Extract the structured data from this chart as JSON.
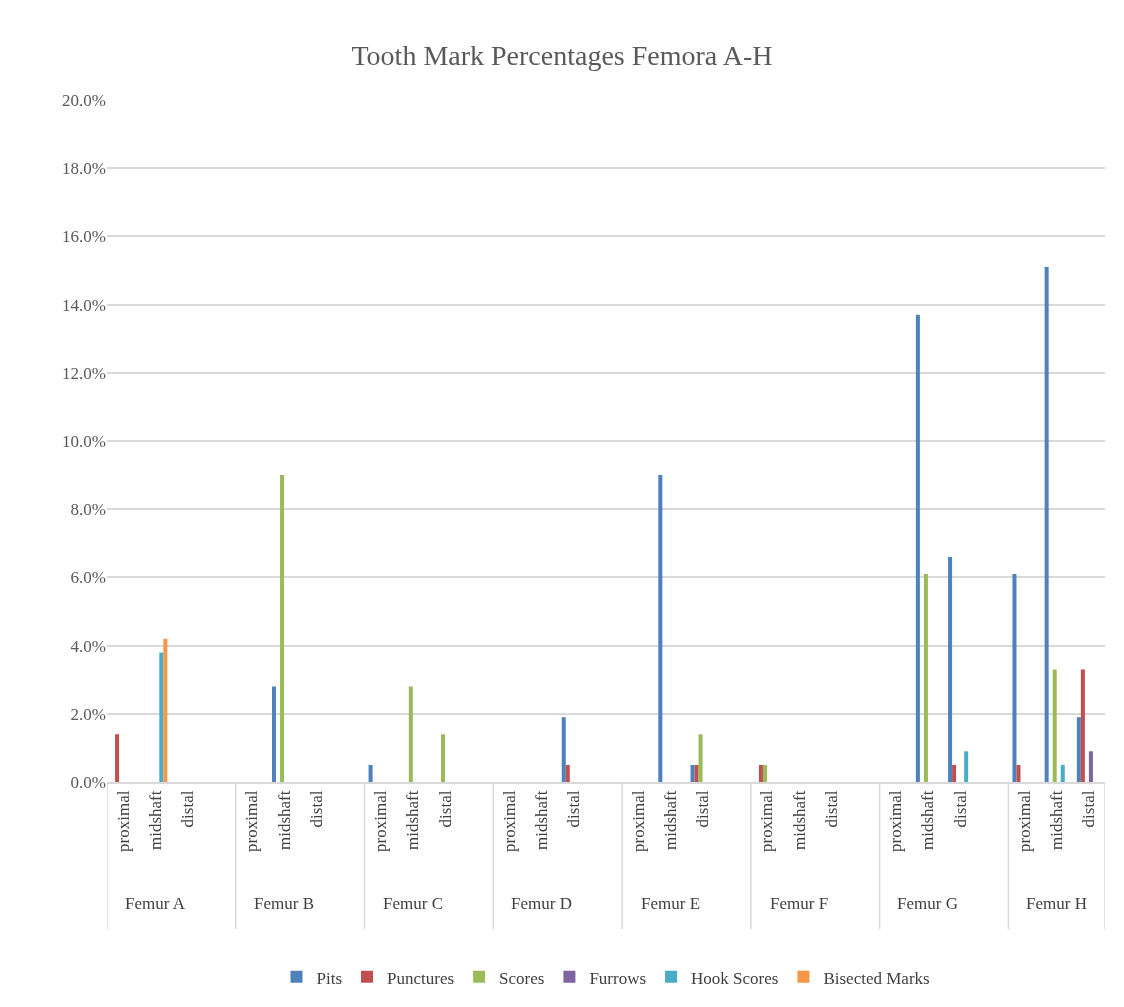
{
  "chart_data": {
    "type": "bar",
    "title": "Tooth Mark Percentages Femora A-H",
    "categories": [
      "proximal",
      "midshaft",
      "distal",
      null,
      "proximal",
      "midshaft",
      "distal",
      null,
      "proximal",
      "midshaft",
      "distal",
      null,
      "proximal",
      "midshaft",
      "distal",
      null,
      "proximal",
      "midshaft",
      "distal",
      null,
      "proximal",
      "midshaft",
      "distal",
      null,
      "proximal",
      "midshaft",
      "distal",
      null,
      "proximal",
      "midshaft",
      "distal"
    ],
    "annotations": [
      "Femur A",
      "Femur B",
      "Femur C",
      "Femur D",
      "Femur E",
      "Femur F",
      "Femur G",
      "Femur H"
    ],
    "series": [
      {
        "name": "Pits",
        "color": "#4f81bd",
        "values": [
          null,
          null,
          null,
          null,
          null,
          2.8,
          null,
          null,
          0.5,
          null,
          null,
          null,
          null,
          null,
          1.9,
          null,
          null,
          9.0,
          0.5,
          null,
          null,
          null,
          null,
          null,
          null,
          13.7,
          6.6,
          null,
          6.1,
          15.1,
          1.9
        ]
      },
      {
        "name": "Punctures",
        "color": "#c0504d",
        "values": [
          1.4,
          null,
          null,
          null,
          null,
          null,
          null,
          null,
          null,
          null,
          null,
          null,
          null,
          null,
          0.5,
          null,
          null,
          null,
          0.5,
          null,
          0.5,
          null,
          null,
          null,
          null,
          null,
          0.5,
          null,
          0.5,
          null,
          3.3
        ]
      },
      {
        "name": "Scores",
        "color": "#9bbb59",
        "values": [
          null,
          null,
          null,
          null,
          null,
          9.0,
          null,
          null,
          null,
          2.8,
          1.4,
          null,
          null,
          null,
          null,
          null,
          null,
          null,
          1.4,
          null,
          0.5,
          null,
          null,
          null,
          null,
          6.1,
          null,
          null,
          null,
          3.3,
          null
        ]
      },
      {
        "name": "Furrows",
        "color": "#8064a2",
        "values": [
          null,
          null,
          null,
          null,
          null,
          null,
          null,
          null,
          null,
          null,
          null,
          null,
          null,
          null,
          null,
          null,
          null,
          null,
          null,
          null,
          null,
          null,
          null,
          null,
          null,
          null,
          null,
          null,
          null,
          null,
          0.9
        ]
      },
      {
        "name": "Hook Scores",
        "color": "#4bacc6",
        "values": [
          null,
          3.8,
          null,
          null,
          null,
          null,
          null,
          null,
          null,
          null,
          null,
          null,
          null,
          null,
          null,
          null,
          null,
          null,
          null,
          null,
          null,
          null,
          null,
          null,
          null,
          null,
          0.9,
          null,
          null,
          0.5,
          null
        ]
      },
      {
        "name": "Bisected Marks",
        "color": "#f79646",
        "values": [
          null,
          4.2,
          null,
          null,
          null,
          null,
          null,
          null,
          null,
          null,
          null,
          null,
          null,
          null,
          null,
          null,
          null,
          null,
          null,
          null,
          null,
          null,
          null,
          null,
          null,
          null,
          null,
          null,
          null,
          null,
          null
        ]
      }
    ],
    "ylim": [
      0,
      20
    ],
    "yticks": [
      {
        "value": 0,
        "label": "0.0%"
      },
      {
        "value": 2,
        "label": "2.0%"
      },
      {
        "value": 4,
        "label": "4.0%"
      },
      {
        "value": 6,
        "label": "6.0%"
      },
      {
        "value": 8,
        "label": "8.0%"
      },
      {
        "value": 10,
        "label": "10.0%"
      },
      {
        "value": 12,
        "label": "12.0%"
      },
      {
        "value": 14,
        "label": "14.0%"
      },
      {
        "value": 16,
        "label": "16.0%"
      },
      {
        "value": 18,
        "label": "18.0%"
      },
      {
        "value": 20,
        "label": "20.0%"
      }
    ],
    "grid": "y",
    "legend": "bottom"
  }
}
